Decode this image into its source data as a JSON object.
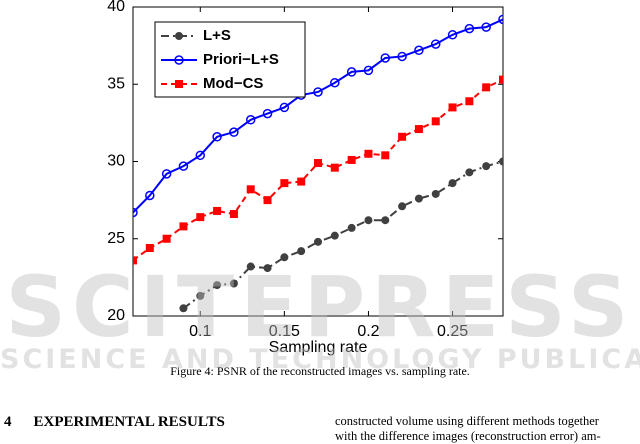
{
  "chart_data": {
    "type": "line",
    "x": [
      0.06,
      0.07,
      0.08,
      0.09,
      0.1,
      0.11,
      0.12,
      0.13,
      0.14,
      0.15,
      0.16,
      0.17,
      0.18,
      0.19,
      0.2,
      0.21,
      0.22,
      0.23,
      0.24,
      0.25,
      0.26,
      0.27,
      0.28
    ],
    "series": [
      {
        "name": "L+S",
        "color": "#404040",
        "line_style": "dashdot",
        "marker": "filled-circle",
        "values": [
          null,
          null,
          null,
          20.5,
          21.3,
          22.0,
          22.1,
          23.2,
          23.1,
          23.8,
          24.2,
          24.8,
          25.2,
          25.7,
          26.2,
          26.2,
          27.1,
          27.6,
          27.9,
          28.6,
          29.3,
          29.7,
          30.0
        ]
      },
      {
        "name": "Priori−L+S",
        "color": "#0000ff",
        "line_style": "solid",
        "marker": "open-circle",
        "values": [
          26.7,
          27.8,
          29.2,
          29.7,
          30.4,
          31.6,
          31.9,
          32.7,
          33.1,
          33.5,
          34.3,
          34.5,
          35.1,
          35.8,
          35.9,
          36.7,
          36.8,
          37.2,
          37.6,
          38.2,
          38.6,
          38.7,
          39.2
        ]
      },
      {
        "name": "Mod−CS",
        "color": "#ff0000",
        "line_style": "dashed",
        "marker": "filled-square",
        "values": [
          23.6,
          24.4,
          25.0,
          25.8,
          26.4,
          26.8,
          26.6,
          28.2,
          27.5,
          28.6,
          28.7,
          29.9,
          29.6,
          30.1,
          30.5,
          30.4,
          31.6,
          32.1,
          32.6,
          33.5,
          33.9,
          34.8,
          35.3
        ]
      }
    ],
    "x_label": "Sampling rate",
    "xlim": [
      0.06,
      0.28
    ],
    "xticks": [
      0.1,
      0.15,
      0.2,
      0.25
    ],
    "ylim": [
      20,
      40
    ],
    "yticks": [
      20,
      25,
      30,
      35,
      40
    ],
    "legend": "top-left",
    "grid": false
  },
  "figure": {
    "caption": "Figure 4: PSNR of the reconstructed images vs. sampling rate."
  },
  "watermark": {
    "title": "SCITEPRESS",
    "subtitle": "SCIENCE AND TECHNOLOGY PUBLICATIONS"
  },
  "section": {
    "number": "4",
    "title": "EXPERIMENTAL RESULTS"
  },
  "body": {
    "lines": [
      "constructed volume using different methods together",
      "with the difference images (reconstruction error) am-"
    ]
  }
}
